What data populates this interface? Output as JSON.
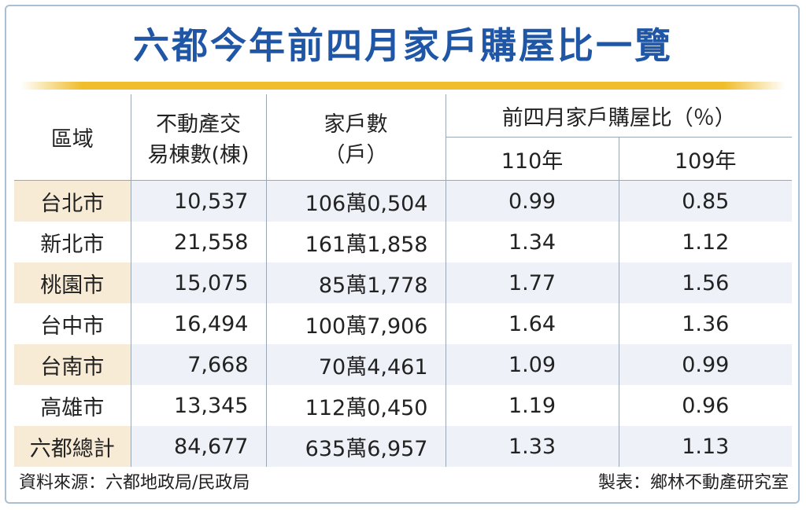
{
  "title": "六都今年前四月家戶購屋比一覽",
  "header": {
    "district": "區域",
    "transactions_line1": "不動產交",
    "transactions_line2": "易棟數(棟)",
    "households_line1": "家戶數",
    "households_line2": "（戶）",
    "ratio": "前四月家戶購屋比（％）",
    "year_110": "110年",
    "year_109": "109年"
  },
  "chart_data": {
    "type": "table",
    "columns": [
      "區域",
      "不動產交易棟數(棟)",
      "家戶數（戶）",
      "110年",
      "109年"
    ],
    "rows": [
      {
        "district": "台北市",
        "transactions": "10,537",
        "households": "106萬0,504",
        "y110": "0.99",
        "y109": "0.85"
      },
      {
        "district": "新北市",
        "transactions": "21,558",
        "households": "161萬1,858",
        "y110": "1.34",
        "y109": "1.12"
      },
      {
        "district": "桃園市",
        "transactions": "15,075",
        "households": "85萬1,778",
        "y110": "1.77",
        "y109": "1.56"
      },
      {
        "district": "台中市",
        "transactions": "16,494",
        "households": "100萬7,906",
        "y110": "1.64",
        "y109": "1.36"
      },
      {
        "district": "台南市",
        "transactions": "7,668",
        "households": "70萬4,461",
        "y110": "1.09",
        "y109": "0.99"
      },
      {
        "district": "高雄市",
        "transactions": "13,345",
        "households": "112萬0,450",
        "y110": "1.19",
        "y109": "0.96"
      },
      {
        "district": "六都總計",
        "transactions": "84,677",
        "households": "635萬6,957",
        "y110": "1.33",
        "y109": "1.13"
      }
    ]
  },
  "footer": {
    "source": "資料來源：六都地政局/民政局",
    "maker": "製表：鄉林不動產研究室"
  },
  "colors": {
    "title": "#1f56a6",
    "gold_rule": "#f0bd2c",
    "district_bg": "#f7ebd6",
    "stripe_bg": "#eef2f8",
    "frame": "#a9bfd3"
  }
}
